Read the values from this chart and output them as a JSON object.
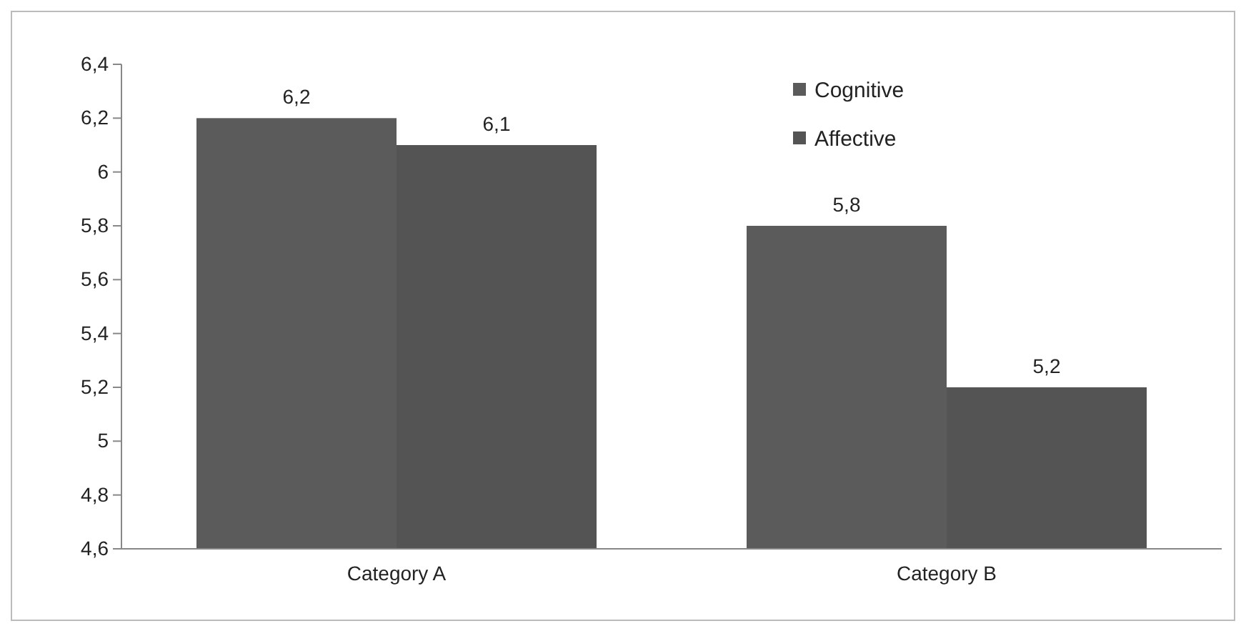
{
  "chart_data": {
    "type": "bar",
    "categories": [
      "Category A",
      "Category B"
    ],
    "series": [
      {
        "name": "Cognitive",
        "color": "#5b5b5b",
        "values": [
          6.2,
          5.8
        ],
        "value_labels": [
          "6,2",
          "5,8"
        ]
      },
      {
        "name": "Affective",
        "color": "#545454",
        "values": [
          6.1,
          5.2
        ],
        "value_labels": [
          "6,1",
          "5,2"
        ]
      }
    ],
    "ylim": [
      4.6,
      6.4
    ],
    "yticks": [
      {
        "value": 4.6,
        "label": "4,6"
      },
      {
        "value": 4.8,
        "label": "4,8"
      },
      {
        "value": 5,
        "label": "5"
      },
      {
        "value": 5.2,
        "label": "5,2"
      },
      {
        "value": 5.4,
        "label": "5,4"
      },
      {
        "value": 5.6,
        "label": "5,6"
      },
      {
        "value": 5.8,
        "label": "5,8"
      },
      {
        "value": 6,
        "label": "6"
      },
      {
        "value": 6.2,
        "label": "6,2"
      },
      {
        "value": 6.4,
        "label": "6,4"
      }
    ],
    "grid": false,
    "legend": "top right"
  }
}
